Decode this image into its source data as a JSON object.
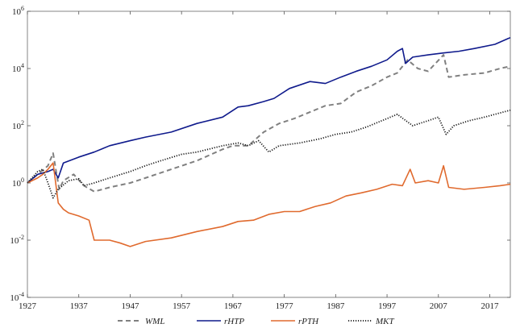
{
  "chart_data": {
    "type": "line",
    "title": "",
    "xlabel": "",
    "ylabel": "",
    "xlim": [
      1927,
      2021
    ],
    "ylim": [
      0.0001,
      1000000
    ],
    "y_scale": "log",
    "grid": false,
    "legend_position": "bottom",
    "x_ticks": [
      {
        "value": 1927,
        "label": "1927"
      },
      {
        "value": 1937,
        "label": "1937"
      },
      {
        "value": 1947,
        "label": "1947"
      },
      {
        "value": 1957,
        "label": "1957"
      },
      {
        "value": 1967,
        "label": "1967"
      },
      {
        "value": 1977,
        "label": "1977"
      },
      {
        "value": 1987,
        "label": "1987"
      },
      {
        "value": 1997,
        "label": "1997"
      },
      {
        "value": 2007,
        "label": "2007"
      },
      {
        "value": 2017,
        "label": "2017"
      }
    ],
    "y_ticks": [
      {
        "value": 0.0001,
        "base": "10",
        "exp": "-4"
      },
      {
        "value": 0.01,
        "base": "10",
        "exp": "-2"
      },
      {
        "value": 1,
        "base": "10",
        "exp": "0"
      },
      {
        "value": 100,
        "base": "10",
        "exp": "2"
      },
      {
        "value": 10000,
        "base": "10",
        "exp": "4"
      },
      {
        "value": 1000000,
        "base": "10",
        "exp": "6"
      }
    ],
    "series": [
      {
        "name": "WML",
        "color": "#808080",
        "dash": "dashed",
        "points": [
          [
            1927,
            1.0
          ],
          [
            1929,
            2.0
          ],
          [
            1931,
            4.0
          ],
          [
            1932,
            11.0
          ],
          [
            1932.6,
            2.5
          ],
          [
            1933.2,
            0.6
          ],
          [
            1934,
            1.2
          ],
          [
            1936,
            2.0
          ],
          [
            1938,
            0.8
          ],
          [
            1940,
            0.5
          ],
          [
            1943,
            0.7
          ],
          [
            1947,
            1.0
          ],
          [
            1950,
            1.5
          ],
          [
            1955,
            3.0
          ],
          [
            1960,
            6.0
          ],
          [
            1965,
            15.0
          ],
          [
            1967,
            20.0
          ],
          [
            1970,
            20.0
          ],
          [
            1973,
            60.0
          ],
          [
            1976,
            120.0
          ],
          [
            1979,
            180.0
          ],
          [
            1982,
            300.0
          ],
          [
            1985,
            500.0
          ],
          [
            1988,
            600.0
          ],
          [
            1991,
            1500.0
          ],
          [
            1994,
            2500.0
          ],
          [
            1997,
            5000.0
          ],
          [
            1999,
            7000.0
          ],
          [
            2001,
            20000.0
          ],
          [
            2003,
            10000.0
          ],
          [
            2005,
            8000.0
          ],
          [
            2008,
            30000.0
          ],
          [
            2009,
            5000.0
          ],
          [
            2012,
            6000.0
          ],
          [
            2016,
            7000.0
          ],
          [
            2019,
            10000.0
          ],
          [
            2021,
            12000.0
          ]
        ]
      },
      {
        "name": "rHTP",
        "color": "#0f1a8c",
        "dash": "solid",
        "points": [
          [
            1927,
            1.0
          ],
          [
            1929,
            2.0
          ],
          [
            1931,
            2.5
          ],
          [
            1932,
            3.0
          ],
          [
            1933,
            1.5
          ],
          [
            1934,
            5.0
          ],
          [
            1937,
            8.0
          ],
          [
            1940,
            12.0
          ],
          [
            1943,
            20.0
          ],
          [
            1947,
            30.0
          ],
          [
            1950,
            40.0
          ],
          [
            1955,
            60.0
          ],
          [
            1960,
            120.0
          ],
          [
            1965,
            200.0
          ],
          [
            1968,
            450.0
          ],
          [
            1970,
            500.0
          ],
          [
            1973,
            700.0
          ],
          [
            1975,
            900.0
          ],
          [
            1978,
            2000.0
          ],
          [
            1982,
            3500.0
          ],
          [
            1985,
            3000.0
          ],
          [
            1988,
            5000.0
          ],
          [
            1991,
            8000.0
          ],
          [
            1994,
            12000.0
          ],
          [
            1997,
            20000.0
          ],
          [
            1999,
            40000.0
          ],
          [
            2000,
            50000.0
          ],
          [
            2000.6,
            15000.0
          ],
          [
            2002,
            25000.0
          ],
          [
            2005,
            30000.0
          ],
          [
            2008,
            35000.0
          ],
          [
            2011,
            40000.0
          ],
          [
            2014,
            50000.0
          ],
          [
            2018,
            70000.0
          ],
          [
            2020.5,
            110000.0
          ],
          [
            2021,
            120000.0
          ]
        ]
      },
      {
        "name": "rPTH",
        "color": "#e06a2e",
        "dash": "solid",
        "points": [
          [
            1927,
            1.0
          ],
          [
            1929,
            1.5
          ],
          [
            1930,
            2.0
          ],
          [
            1931,
            3.0
          ],
          [
            1932,
            5.0
          ],
          [
            1932.5,
            1.0
          ],
          [
            1933,
            0.2
          ],
          [
            1934,
            0.12
          ],
          [
            1935,
            0.09
          ],
          [
            1937,
            0.07
          ],
          [
            1939,
            0.05
          ],
          [
            1940,
            0.01
          ],
          [
            1943,
            0.01
          ],
          [
            1945,
            0.008
          ],
          [
            1947,
            0.006
          ],
          [
            1950,
            0.009
          ],
          [
            1955,
            0.012
          ],
          [
            1960,
            0.02
          ],
          [
            1965,
            0.03
          ],
          [
            1968,
            0.045
          ],
          [
            1971,
            0.05
          ],
          [
            1974,
            0.08
          ],
          [
            1977,
            0.1
          ],
          [
            1980,
            0.1
          ],
          [
            1983,
            0.15
          ],
          [
            1986,
            0.2
          ],
          [
            1989,
            0.35
          ],
          [
            1992,
            0.45
          ],
          [
            1995,
            0.6
          ],
          [
            1998,
            0.9
          ],
          [
            2000,
            0.8
          ],
          [
            2001.5,
            3.0
          ],
          [
            2002.5,
            1.0
          ],
          [
            2005,
            1.2
          ],
          [
            2007,
            1.0
          ],
          [
            2008,
            4.0
          ],
          [
            2009,
            0.7
          ],
          [
            2012,
            0.6
          ],
          [
            2016,
            0.7
          ],
          [
            2019,
            0.8
          ],
          [
            2021,
            0.9
          ]
        ]
      },
      {
        "name": "MKT",
        "color": "#1a1a1a",
        "dash": "dotted",
        "points": [
          [
            1927,
            1.0
          ],
          [
            1929,
            2.5
          ],
          [
            1930,
            3.0
          ],
          [
            1931,
            1.0
          ],
          [
            1932,
            0.3
          ],
          [
            1933,
            0.6
          ],
          [
            1935,
            1.2
          ],
          [
            1937,
            1.4
          ],
          [
            1938,
            0.8
          ],
          [
            1940,
            1.0
          ],
          [
            1943,
            1.5
          ],
          [
            1947,
            2.5
          ],
          [
            1950,
            4.0
          ],
          [
            1953,
            6.0
          ],
          [
            1957,
            10.0
          ],
          [
            1960,
            12.0
          ],
          [
            1965,
            20.0
          ],
          [
            1968,
            25.0
          ],
          [
            1970,
            20.0
          ],
          [
            1972,
            30.0
          ],
          [
            1974,
            12.0
          ],
          [
            1976,
            20.0
          ],
          [
            1980,
            25.0
          ],
          [
            1984,
            35.0
          ],
          [
            1987,
            50.0
          ],
          [
            1990,
            60.0
          ],
          [
            1993,
            90.0
          ],
          [
            1996,
            150.0
          ],
          [
            1999,
            250.0
          ],
          [
            2002,
            100.0
          ],
          [
            2005,
            150.0
          ],
          [
            2007,
            200.0
          ],
          [
            2008.5,
            50.0
          ],
          [
            2010,
            100.0
          ],
          [
            2013,
            150.0
          ],
          [
            2016,
            200.0
          ],
          [
            2019,
            280.0
          ],
          [
            2021,
            350.0
          ]
        ]
      }
    ]
  }
}
